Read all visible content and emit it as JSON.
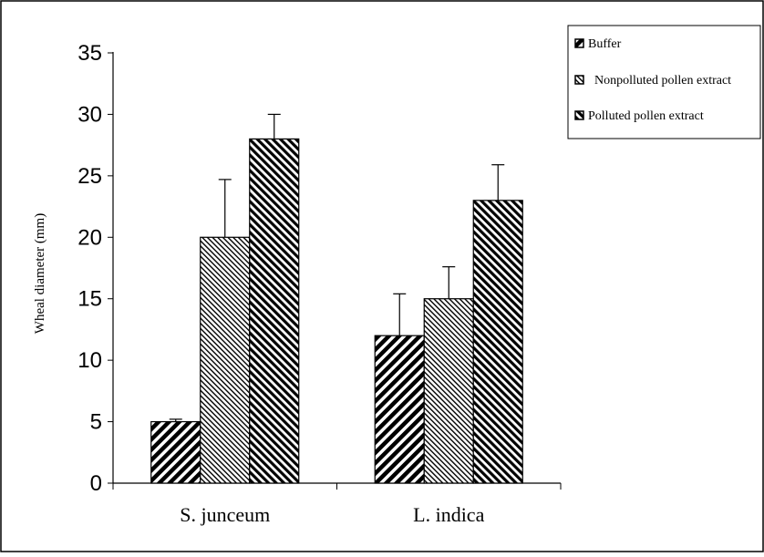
{
  "chart_data": {
    "type": "bar",
    "categories": [
      "S. junceum",
      "L. indica"
    ],
    "series": [
      {
        "name": "Buffer",
        "values": [
          5,
          12
        ],
        "errors": [
          0.2,
          3.4
        ]
      },
      {
        "name": "Nonpolluted pollen extract",
        "values": [
          20,
          15
        ],
        "errors": [
          4.7,
          2.6
        ]
      },
      {
        "name": "Polluted pollen extract",
        "values": [
          28,
          23
        ],
        "errors": [
          2.0,
          2.9
        ]
      }
    ],
    "ylabel": "Wheal diameter (mm)",
    "xlabel": "",
    "title": "",
    "ylim": [
      0,
      35
    ],
    "yticks": [
      0,
      5,
      10,
      15,
      20,
      25,
      30,
      35
    ],
    "grid": false,
    "legend_position": "top-right"
  }
}
